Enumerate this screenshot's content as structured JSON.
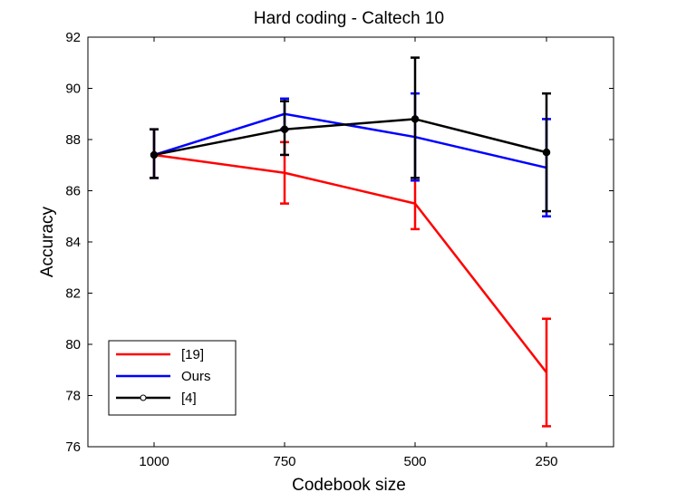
{
  "chart_data": {
    "type": "line",
    "title": "Hard coding - Caltech 10",
    "xlabel": "Codebook size",
    "ylabel": "Accuracy",
    "categories": [
      "1000",
      "750",
      "500",
      "250"
    ],
    "ylim": [
      76,
      92
    ],
    "yticks": [
      76,
      78,
      80,
      82,
      84,
      86,
      88,
      90,
      92
    ],
    "grid": false,
    "legend_position": "bottom-left",
    "series": [
      {
        "name": "[19]",
        "color": "#ff0000",
        "marker": "none",
        "values": [
          87.4,
          86.7,
          85.5,
          78.9
        ],
        "err_low": [
          86.5,
          85.5,
          84.5,
          76.8
        ],
        "err_high": [
          88.4,
          87.9,
          86.4,
          81.0
        ]
      },
      {
        "name": "Ours",
        "color": "#0000ff",
        "marker": "none",
        "values": [
          87.4,
          89.0,
          88.1,
          86.9
        ],
        "err_low": [
          86.5,
          88.4,
          86.4,
          85.0
        ],
        "err_high": [
          88.4,
          89.6,
          89.8,
          88.8
        ]
      },
      {
        "name": "[4]",
        "color": "#000000",
        "marker": "o",
        "values": [
          87.4,
          88.4,
          88.8,
          87.5
        ],
        "err_low": [
          86.5,
          87.4,
          86.5,
          85.2
        ],
        "err_high": [
          88.4,
          89.5,
          91.2,
          89.8
        ]
      }
    ]
  }
}
